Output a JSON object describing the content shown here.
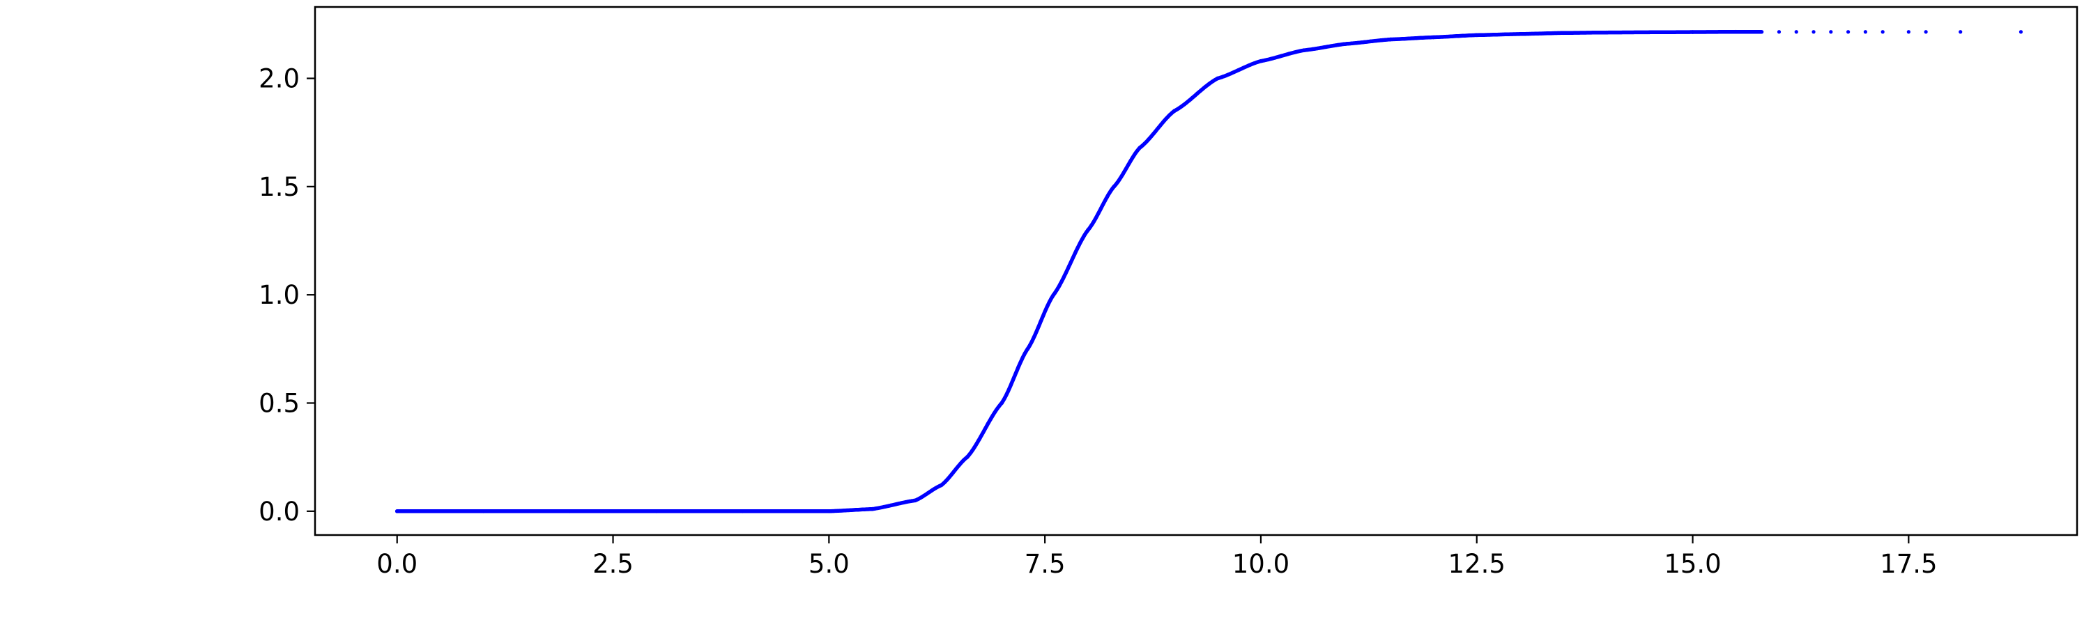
{
  "chart_data": {
    "type": "scatter",
    "title": "",
    "xlabel": "",
    "ylabel": "",
    "xlim": [
      -0.95,
      19.45
    ],
    "ylim": [
      -0.11,
      2.33
    ],
    "grid": false,
    "legend": "none",
    "x_ticks": [
      0.0,
      2.5,
      5.0,
      7.5,
      10.0,
      12.5,
      15.0,
      17.5
    ],
    "x_tick_labels": [
      "0.0",
      "2.5",
      "5.0",
      "7.5",
      "10.0",
      "12.5",
      "15.0",
      "17.5"
    ],
    "y_ticks": [
      0.0,
      0.5,
      1.0,
      1.5,
      2.0
    ],
    "y_tick_labels": [
      "0.0",
      "0.5",
      "1.0",
      "1.5",
      "2.0"
    ],
    "series": [
      {
        "color": "#0000ff",
        "x": [
          0.0,
          1.0,
          2.0,
          3.0,
          4.0,
          5.0,
          5.5,
          6.0,
          6.3,
          6.6,
          7.0,
          7.3,
          7.6,
          8.0,
          8.3,
          8.6,
          9.0,
          9.5,
          10.0,
          10.5,
          11.0,
          11.5,
          12.0,
          12.5,
          13.0,
          13.5,
          14.0,
          14.5,
          15.0,
          15.5,
          15.8,
          16.0,
          16.2,
          16.4,
          16.6,
          16.8,
          17.0,
          17.2,
          17.5,
          17.7,
          18.1,
          18.8
        ],
        "y": [
          0.0,
          0.0,
          0.0,
          0.0,
          0.0,
          0.0,
          0.01,
          0.05,
          0.12,
          0.25,
          0.5,
          0.75,
          1.0,
          1.3,
          1.5,
          1.68,
          1.85,
          2.0,
          2.08,
          2.13,
          2.16,
          2.18,
          2.19,
          2.2,
          2.205,
          2.21,
          2.212,
          2.213,
          2.214,
          2.215,
          2.215,
          2.215,
          2.215,
          2.215,
          2.215,
          2.215,
          2.215,
          2.215,
          2.215,
          2.215,
          2.215,
          2.215
        ]
      }
    ]
  }
}
